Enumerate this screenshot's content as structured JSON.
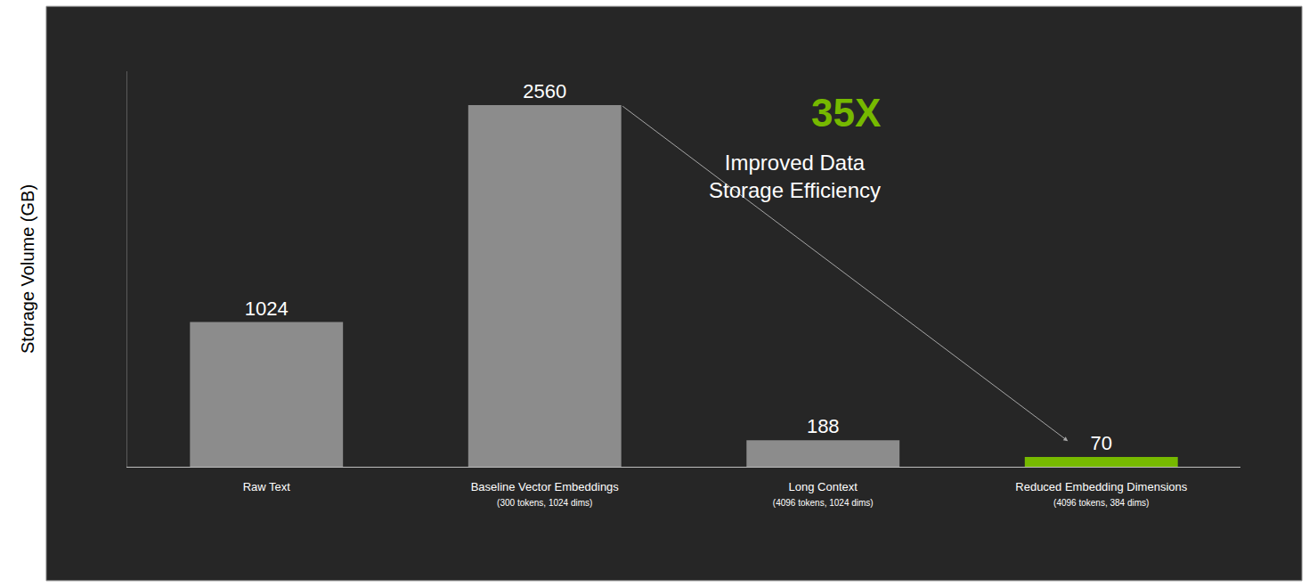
{
  "chart_data": {
    "type": "bar",
    "y_label": "Storage Volume (GB)",
    "categories": [
      "Raw Text",
      "Baseline Vector Embeddings (300 tokens, 1024 dims)",
      "Long Context (4096 tokens, 1024 dims)",
      "Reduced Embedding Dimensions (4096 tokens, 384 dims)"
    ],
    "values": [
      1024,
      2560,
      188,
      70
    ],
    "colors": [
      "#8c8c8c",
      "#8c8c8c",
      "#8c8c8c",
      "#76b900"
    ],
    "ylim": [
      0,
      2800
    ],
    "yticks": [],
    "grid": false,
    "tick_labels": "x",
    "data_labels": true,
    "annotations": [
      {
        "text": "35X",
        "color": "#76b900"
      },
      {
        "lines": [
          "Improved Data",
          "Storage Efficiency"
        ]
      }
    ]
  }
}
